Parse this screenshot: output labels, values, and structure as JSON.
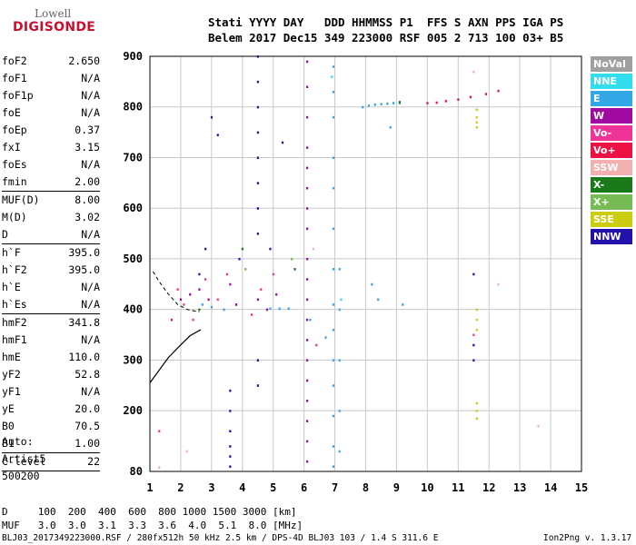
{
  "logo": {
    "brand": "Lowell",
    "product": "DIGISONDE"
  },
  "header": {
    "line1": "Stati YYYY DAY   DDD HHMMSS P1  FFS S AXN PPS IGA PS",
    "line2": "Belem 2017 Dec15 349 223000 RSF 005 2 713 100 03+ B5"
  },
  "params": [
    {
      "k": "foF2",
      "v": "2.650"
    },
    {
      "k": "foF1",
      "v": "N/A"
    },
    {
      "k": "foF1p",
      "v": "N/A"
    },
    {
      "k": "foE",
      "v": "N/A"
    },
    {
      "k": "foEp",
      "v": "0.37"
    },
    {
      "k": "fxI",
      "v": "3.15"
    },
    {
      "k": "foEs",
      "v": "N/A"
    },
    {
      "k": "fmin",
      "v": "2.00"
    },
    {
      "sep": true
    },
    {
      "k": "MUF(D)",
      "v": "8.00"
    },
    {
      "k": "M(D)",
      "v": "3.02"
    },
    {
      "k": "D",
      "v": "N/A"
    },
    {
      "sep": true
    },
    {
      "k": "h`F",
      "v": "395.0"
    },
    {
      "k": "h`F2",
      "v": "395.0"
    },
    {
      "k": "h`E",
      "v": "N/A"
    },
    {
      "k": "h`Es",
      "v": "N/A"
    },
    {
      "sep": true
    },
    {
      "k": "hmF2",
      "v": "341.8"
    },
    {
      "k": "hmF1",
      "v": "N/A"
    },
    {
      "k": "hmE",
      "v": "110.0"
    },
    {
      "k": "yF2",
      "v": "52.8"
    },
    {
      "k": "yF1",
      "v": "N/A"
    },
    {
      "k": "yE",
      "v": "20.0"
    },
    {
      "k": "B0",
      "v": "70.5"
    },
    {
      "k": "B1",
      "v": "1.00"
    },
    {
      "sep": true
    },
    {
      "k": "C-level",
      "v": "22"
    },
    {
      "sep": true
    }
  ],
  "auto": {
    "line1": "Auto:",
    "line2": "Artist5",
    "line3": "500200"
  },
  "legend": [
    {
      "label": "NoVal",
      "color": "#a0a0a0"
    },
    {
      "label": "NNE",
      "color": "#33ddee"
    },
    {
      "label": "E",
      "color": "#33a6e6"
    },
    {
      "label": "W",
      "color": "#a00aa0"
    },
    {
      "label": "Vo-",
      "color": "#ee3399"
    },
    {
      "label": "Vo+",
      "color": "#ee1144"
    },
    {
      "label": "SSW",
      "color": "#f2b0b0"
    },
    {
      "label": "X-",
      "color": "#1a7a1a"
    },
    {
      "label": "X+",
      "color": "#77bb55"
    },
    {
      "label": "SSE",
      "color": "#cccc11"
    },
    {
      "label": "NNW",
      "color": "#2211aa"
    }
  ],
  "footer": {
    "d_row": "D     100  200  400  600  800 1000 1500 3000 [km]",
    "muf_row": "MUF   3.0  3.0  3.1  3.3  3.6  4.0  5.1  8.0 [MHz]",
    "file": "BLJ03_2017349223000.RSF / 280fx512h 50 kHz 2.5 km / DPS-4D BLJ03 103 / 1.4 S 311.6 E",
    "version": "Ion2Png v. 1.3.17"
  },
  "chart_data": {
    "type": "scatter",
    "title": "",
    "xlabel": "",
    "ylabel": "",
    "xlim": [
      1,
      15
    ],
    "ylim": [
      80,
      900
    ],
    "x_ticks": [
      1,
      2,
      3,
      4,
      5,
      6,
      7,
      8,
      9,
      10,
      11,
      12,
      13,
      14,
      15
    ],
    "y_ticks": [
      80,
      200,
      300,
      400,
      500,
      600,
      700,
      800,
      900
    ],
    "grid": true,
    "legend_position": "right",
    "series": [
      {
        "name": "E",
        "color": "#33a6e6",
        "points": [
          [
            2.7,
            410
          ],
          [
            3.0,
            405
          ],
          [
            3.4,
            400
          ],
          [
            4.9,
            402
          ],
          [
            5.2,
            402
          ],
          [
            5.5,
            402
          ],
          [
            6.95,
            880
          ],
          [
            6.95,
            830
          ],
          [
            6.95,
            780
          ],
          [
            6.95,
            700
          ],
          [
            6.95,
            640
          ],
          [
            6.95,
            560
          ],
          [
            6.95,
            480
          ],
          [
            6.95,
            410
          ],
          [
            6.95,
            360
          ],
          [
            6.95,
            300
          ],
          [
            6.95,
            250
          ],
          [
            6.95,
            190
          ],
          [
            6.95,
            130
          ],
          [
            6.95,
            90
          ],
          [
            7.15,
            480
          ],
          [
            7.15,
            400
          ],
          [
            7.15,
            300
          ],
          [
            7.15,
            200
          ],
          [
            7.15,
            120
          ],
          [
            7.9,
            800
          ],
          [
            8.1,
            803
          ],
          [
            8.3,
            805
          ],
          [
            8.5,
            806
          ],
          [
            8.7,
            807
          ],
          [
            8.9,
            808
          ],
          [
            9.1,
            808
          ],
          [
            8.2,
            450
          ],
          [
            8.4,
            420
          ],
          [
            8.8,
            760
          ],
          [
            9.2,
            410
          ],
          [
            6.2,
            380
          ],
          [
            6.7,
            345
          ]
        ]
      },
      {
        "name": "W",
        "color": "#a00aa0",
        "points": [
          [
            6.1,
            890
          ],
          [
            6.1,
            840
          ],
          [
            6.1,
            780
          ],
          [
            6.1,
            720
          ],
          [
            6.1,
            680
          ],
          [
            6.1,
            640
          ],
          [
            6.1,
            600
          ],
          [
            6.1,
            560
          ],
          [
            6.1,
            500
          ],
          [
            6.1,
            460
          ],
          [
            6.1,
            420
          ],
          [
            6.1,
            380
          ],
          [
            6.1,
            340
          ],
          [
            6.1,
            300
          ],
          [
            6.1,
            260
          ],
          [
            6.1,
            220
          ],
          [
            6.1,
            180
          ],
          [
            6.1,
            140
          ],
          [
            6.1,
            100
          ],
          [
            2.0,
            420
          ],
          [
            2.3,
            430
          ],
          [
            2.6,
            440
          ],
          [
            2.9,
            420
          ],
          [
            3.6,
            450
          ],
          [
            3.8,
            410
          ],
          [
            4.5,
            420
          ],
          [
            4.8,
            400
          ],
          [
            5.1,
            430
          ]
        ]
      },
      {
        "name": "Vo-",
        "color": "#ee3399",
        "points": [
          [
            1.9,
            440
          ],
          [
            2.1,
            410
          ],
          [
            2.4,
            380
          ],
          [
            2.8,
            460
          ],
          [
            3.2,
            420
          ],
          [
            3.5,
            470
          ],
          [
            4.3,
            390
          ],
          [
            4.6,
            440
          ],
          [
            5.0,
            470
          ],
          [
            1.3,
            160
          ],
          [
            6.4,
            330
          ],
          [
            11.5,
            350
          ]
        ]
      },
      {
        "name": "Vo+",
        "color": "#ee1144",
        "points": [
          [
            10.0,
            808
          ],
          [
            10.3,
            809
          ],
          [
            10.6,
            812
          ],
          [
            11.0,
            815
          ],
          [
            11.4,
            820
          ],
          [
            11.9,
            826
          ],
          [
            12.3,
            832
          ],
          [
            1.7,
            380
          ]
        ]
      },
      {
        "name": "NNW",
        "color": "#2211aa",
        "points": [
          [
            3.6,
            240
          ],
          [
            3.6,
            200
          ],
          [
            3.6,
            160
          ],
          [
            3.6,
            130
          ],
          [
            3.6,
            110
          ],
          [
            3.6,
            90
          ],
          [
            4.5,
            900
          ],
          [
            4.5,
            850
          ],
          [
            4.5,
            800
          ],
          [
            4.5,
            750
          ],
          [
            4.5,
            700
          ],
          [
            4.5,
            650
          ],
          [
            4.5,
            600
          ],
          [
            4.5,
            550
          ],
          [
            4.5,
            300
          ],
          [
            4.5,
            250
          ],
          [
            3.0,
            780
          ],
          [
            3.2,
            745
          ],
          [
            5.3,
            730
          ],
          [
            11.5,
            470
          ],
          [
            11.5,
            330
          ],
          [
            11.5,
            300
          ],
          [
            2.6,
            470
          ],
          [
            2.8,
            520
          ],
          [
            3.9,
            500
          ],
          [
            4.9,
            520
          ]
        ]
      },
      {
        "name": "SSE",
        "color": "#cccc11",
        "points": [
          [
            11.6,
            795
          ],
          [
            11.6,
            780
          ],
          [
            11.6,
            770
          ],
          [
            11.6,
            760
          ],
          [
            11.6,
            400
          ],
          [
            11.6,
            380
          ],
          [
            11.6,
            360
          ],
          [
            11.6,
            215
          ],
          [
            11.6,
            200
          ],
          [
            11.6,
            185
          ]
        ]
      },
      {
        "name": "SSW",
        "color": "#f2b0b0",
        "points": [
          [
            2.2,
            120
          ],
          [
            1.3,
            88
          ],
          [
            6.3,
            520
          ],
          [
            11.5,
            870
          ],
          [
            13.6,
            170
          ],
          [
            12.3,
            450
          ]
        ]
      },
      {
        "name": "X-",
        "color": "#1a7a1a",
        "points": [
          [
            5.7,
            480
          ],
          [
            4.0,
            520
          ],
          [
            2.6,
            400
          ],
          [
            9.1,
            810
          ]
        ]
      },
      {
        "name": "X+",
        "color": "#77bb55",
        "points": [
          [
            5.6,
            500
          ],
          [
            4.1,
            480
          ]
        ]
      },
      {
        "name": "NNE",
        "color": "#33ddee",
        "points": [
          [
            6.9,
            860
          ],
          [
            7.2,
            420
          ]
        ]
      }
    ],
    "profile": [
      [
        1,
        255
      ],
      [
        1.3,
        280
      ],
      [
        1.6,
        305
      ],
      [
        2.0,
        330
      ],
      [
        2.3,
        348
      ],
      [
        2.65,
        360
      ]
    ],
    "profile_dashed": [
      [
        1.1,
        475
      ],
      [
        1.3,
        455
      ],
      [
        1.6,
        430
      ],
      [
        1.9,
        410
      ],
      [
        2.2,
        400
      ],
      [
        2.6,
        395
      ]
    ]
  }
}
